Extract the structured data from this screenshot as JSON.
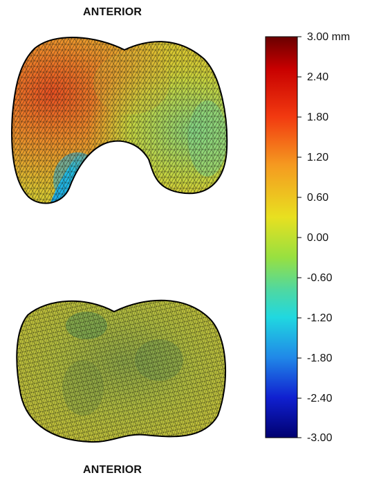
{
  "labels": {
    "top": "ANTERIOR",
    "bottom": "ANTERIOR"
  },
  "colorbar": {
    "ticks": [
      "3.00 mm",
      "2.40",
      "1.80",
      "1.20",
      "0.60",
      "0.00",
      "-0.60",
      "-1.20",
      "-1.80",
      "-2.40",
      "-3.00"
    ],
    "colors": {
      "max": "#7a0000",
      "high": "#e02a10",
      "mid_high": "#f5a020",
      "mid": "#d8e020",
      "low_mid": "#28d8d0",
      "low": "#1040e0",
      "min": "#000070"
    }
  },
  "shapes": {
    "femur_surface": {
      "dominant_colors": [
        "#e87a2a",
        "#2ab4dc",
        "#c8d040",
        "#88cc66"
      ]
    },
    "tibia_surface": {
      "dominant_colors": [
        "#b0c040",
        "#88a848"
      ]
    }
  }
}
